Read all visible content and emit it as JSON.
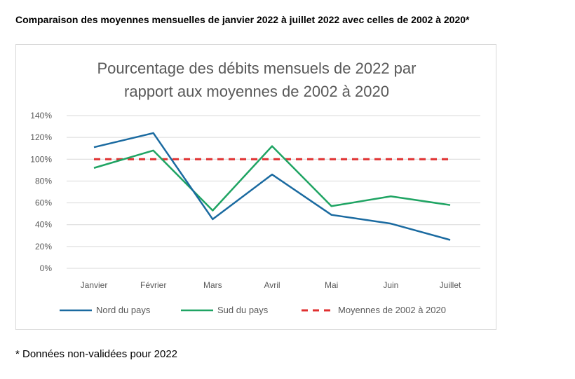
{
  "header": {
    "title": "Comparaison des moyennes mensuelles de janvier 2022 à juillet 2022 avec celles de 2002 à 2020*"
  },
  "footnote": "* Données non-validées pour 2022",
  "chart_data": {
    "type": "line",
    "title_lines": [
      "Pourcentage des débits mensuels de 2022 par",
      "rapport aux moyennes de 2002 à 2020"
    ],
    "categories": [
      "Janvier",
      "Février",
      "Mars",
      "Avril",
      "Mai",
      "Juin",
      "Juillet"
    ],
    "yticks": [
      "0%",
      "20%",
      "40%",
      "60%",
      "80%",
      "100%",
      "120%",
      "140%"
    ],
    "ylim": [
      0,
      140
    ],
    "grid": true,
    "legend_position": "bottom",
    "series": [
      {
        "name": "Nord du pays",
        "color": "#1a6aa0",
        "dash": false,
        "values": [
          111,
          124,
          45,
          86,
          49,
          41,
          26
        ]
      },
      {
        "name": "Sud du pays",
        "color": "#1fa463",
        "dash": false,
        "values": [
          92,
          108,
          53,
          112,
          57,
          66,
          58
        ]
      },
      {
        "name": "Moyennes de 2002 à 2020",
        "color": "#e03030",
        "dash": true,
        "values": [
          100,
          100,
          100,
          100,
          100,
          100,
          100
        ]
      }
    ]
  }
}
